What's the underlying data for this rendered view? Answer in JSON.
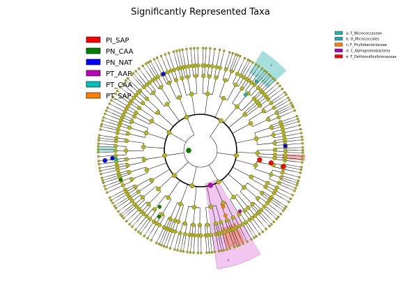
{
  "title": "Significantly Represented Taxa",
  "groups": [
    {
      "name": "PI_SAP",
      "color": "#ff0000"
    },
    {
      "name": "PN_CAA",
      "color": "#008000"
    },
    {
      "name": "PN_NAT",
      "color": "#0000ff"
    },
    {
      "name": "PT_AAP",
      "color": "#c000c0"
    },
    {
      "name": "PT_CAA",
      "color": "#00bfbf"
    },
    {
      "name": "PT_SAP",
      "color": "#ff8000"
    }
  ],
  "clade_legend": [
    {
      "label": "a: F_Micrococcaceae",
      "color": "#20b2aa"
    },
    {
      "label": "b: O_Micrococcales",
      "color": "#20b2aa"
    },
    {
      "label": "c: F_Phyllobacteriaceae",
      "color": "#ff8000"
    },
    {
      "label": "d: C_Alphaproteobacteria",
      "color": "#c000c0"
    },
    {
      "label": "e: F_Dethiosulfovibrionaceae",
      "color": "#ff0000"
    }
  ],
  "highlight_letters": [
    "a",
    "c",
    "d",
    "e"
  ],
  "colors": {
    "node_default": "#b4b41e",
    "node_edge": "#5a5a00",
    "branch": "#000000"
  }
}
